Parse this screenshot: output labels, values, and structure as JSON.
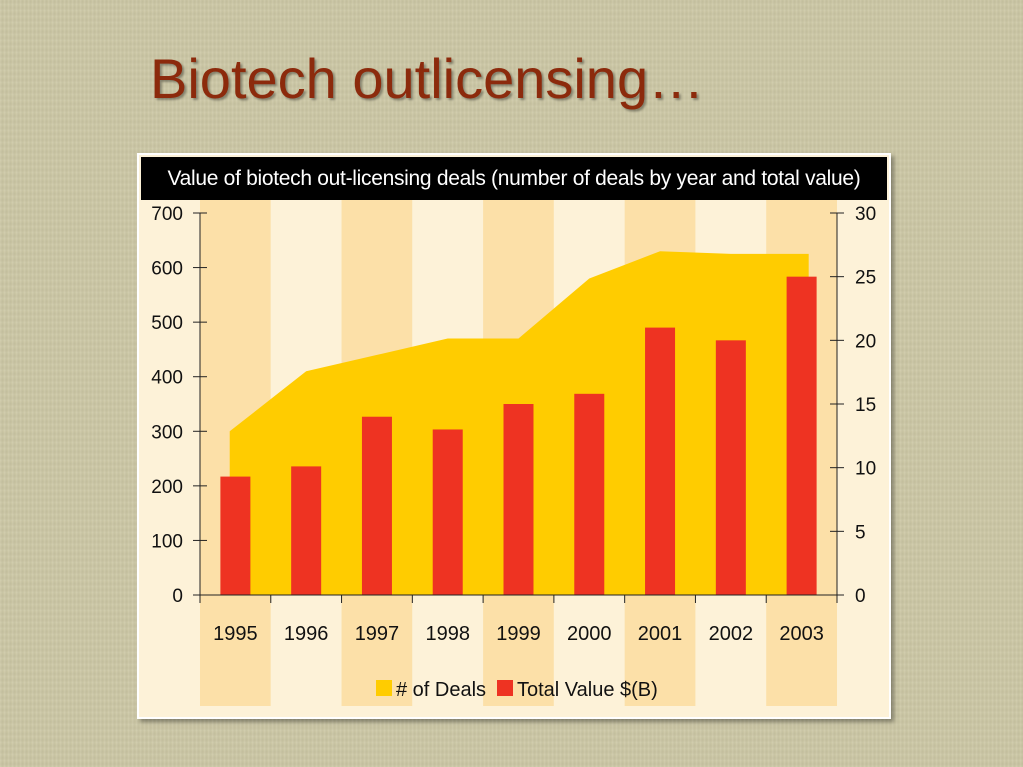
{
  "slide": {
    "title": "Biotech outlicensing…"
  },
  "chart_data": {
    "type": "bar",
    "title": "Value of biotech out-licensing deals (number of deals by year and total value)",
    "categories": [
      "1995",
      "1996",
      "1997",
      "1998",
      "1999",
      "2000",
      "2001",
      "2002",
      "2003"
    ],
    "y_left": {
      "ylim": [
        0,
        700
      ],
      "ticks": [
        "0",
        "100",
        "200",
        "300",
        "400",
        "500",
        "600",
        "700"
      ]
    },
    "y_right": {
      "ylim": [
        0,
        30
      ],
      "ticks": [
        "0",
        "5",
        "10",
        "15",
        "20",
        "25",
        "30"
      ]
    },
    "series": [
      {
        "name": "# of Deals",
        "type": "area",
        "axis": "left",
        "color": "#ffcc00",
        "values": [
          300,
          410,
          440,
          470,
          470,
          580,
          630,
          625,
          625
        ]
      },
      {
        "name": "Total Value $(B)",
        "type": "bar",
        "axis": "right",
        "color": "#ee3322",
        "values": [
          9.3,
          10.1,
          14,
          13,
          15,
          15.8,
          21,
          20,
          25
        ]
      }
    ],
    "legend": "bottom",
    "colors": {
      "band_dark": "#fce0a8",
      "band_light": "#fdf2d8"
    }
  }
}
